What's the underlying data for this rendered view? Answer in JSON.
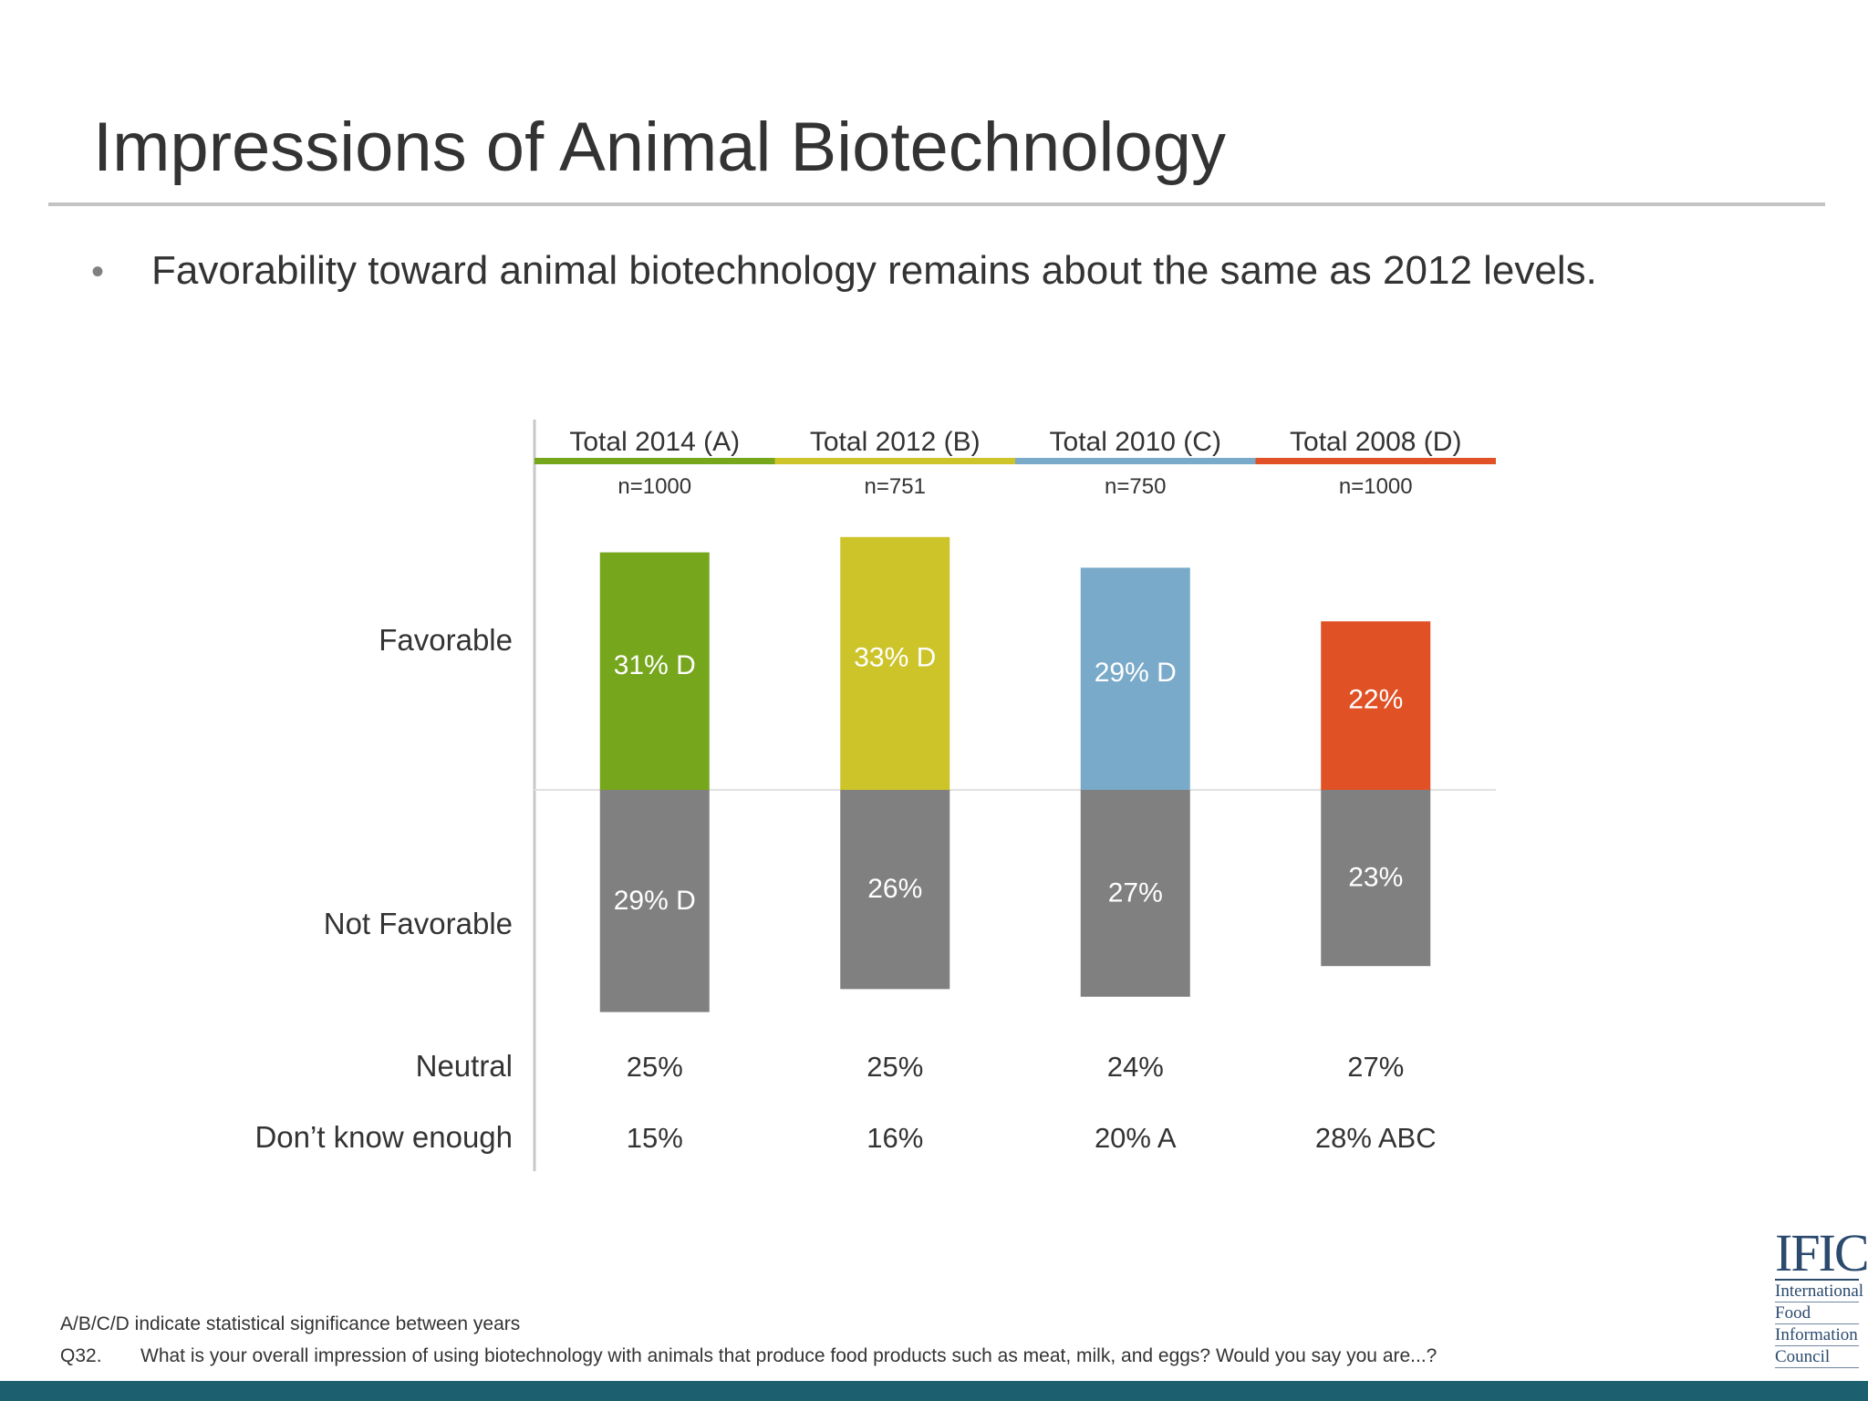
{
  "slide": {
    "title": "Impressions of Animal Biotechnology",
    "bullet": "Favorability toward animal biotechnology remains about the same as 2012 levels.",
    "footnote_significance": "A/B/C/D indicate statistical significance between years",
    "question_number": "Q32.",
    "question_text": "What is your overall impression of using biotechnology with animals that produce food products such as meat, milk, and eggs? Would you say you are...?",
    "colors": {
      "title_rule": "#c3c3c3",
      "bottom_band": "#1c5f6e"
    }
  },
  "logo": {
    "abbr": "IFIC",
    "lines": [
      "International",
      "Food",
      "Information",
      "Council"
    ]
  },
  "chart_data": {
    "type": "bar",
    "layout": "diverging-stacked",
    "categories": [
      "Total 2014 (A)",
      "Total 2012 (B)",
      "Total 2010 (C)",
      "Total 2008 (D)"
    ],
    "sample_sizes": [
      "n=1000",
      "n=751",
      "n=750",
      "n=1000"
    ],
    "category_colors": [
      "#76a61c",
      "#cdc42a",
      "#7aaac9",
      "#e05126"
    ],
    "row_labels": {
      "favorable": "Favorable",
      "not_favorable": "Not Favorable",
      "neutral": "Neutral",
      "dont_know": "Don’t know enough"
    },
    "series": [
      {
        "name": "Favorable",
        "direction": "up",
        "values": [
          31,
          33,
          29,
          22
        ],
        "labels": [
          "31% D",
          "33% D",
          "29% D",
          "22%"
        ]
      },
      {
        "name": "Not Favorable",
        "direction": "down",
        "color": "#808080",
        "values": [
          29,
          26,
          27,
          23
        ],
        "labels": [
          "29% D",
          "26%",
          "27%",
          "23%"
        ]
      }
    ],
    "table_rows": [
      {
        "name": "Neutral",
        "values": [
          "25%",
          "25%",
          "24%",
          "27%"
        ]
      },
      {
        "name": "Don’t know enough",
        "values": [
          "15%",
          "16%",
          "20% A",
          "28% ABC"
        ]
      }
    ]
  }
}
